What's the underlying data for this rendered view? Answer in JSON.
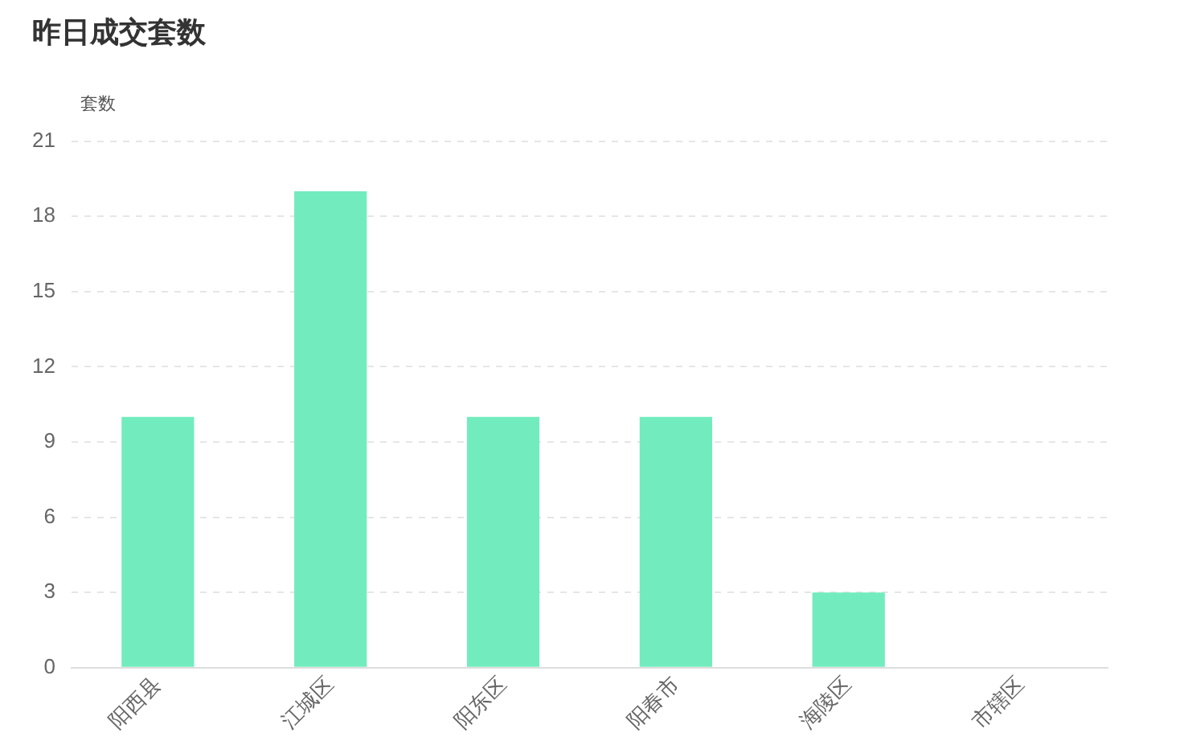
{
  "chart_data": {
    "type": "bar",
    "title": "昨日成交套数",
    "ylabel": "套数",
    "categories": [
      "阳西县",
      "江城区",
      "阳东区",
      "阳春市",
      "海陵区",
      "市辖区"
    ],
    "values": [
      10,
      19,
      10,
      10,
      3,
      0
    ],
    "color": "#72ecbe",
    "ylim": [
      0,
      21
    ],
    "yticks": [
      0,
      3,
      6,
      9,
      12,
      15,
      18,
      21
    ],
    "grid": "y"
  }
}
